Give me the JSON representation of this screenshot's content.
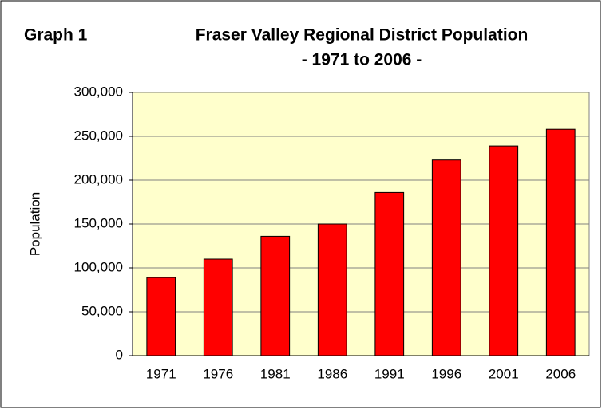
{
  "chart_data": {
    "type": "bar",
    "figure_label": "Graph 1",
    "title": "Fraser Valley Regional District Population",
    "subtitle": "- 1971 to 2006 -",
    "ylabel": "Population",
    "categories": [
      "1971",
      "1976",
      "1981",
      "1986",
      "1991",
      "1996",
      "2001",
      "2006"
    ],
    "values": [
      89000,
      110000,
      136000,
      150000,
      186000,
      223000,
      239000,
      258000
    ],
    "color": "#ff0000",
    "ylim": [
      0,
      300000
    ],
    "yticks": [
      0,
      {
        "value": 50000,
        "label": "50,000"
      },
      {
        "value": 100000,
        "label": "100,000"
      },
      {
        "value": 150000,
        "label": "150,000"
      },
      {
        "value": 200000,
        "label": "200,000"
      },
      {
        "value": 250000,
        "label": "250,000"
      },
      {
        "value": 300000,
        "label": "300,000"
      }
    ],
    "grid": true
  }
}
